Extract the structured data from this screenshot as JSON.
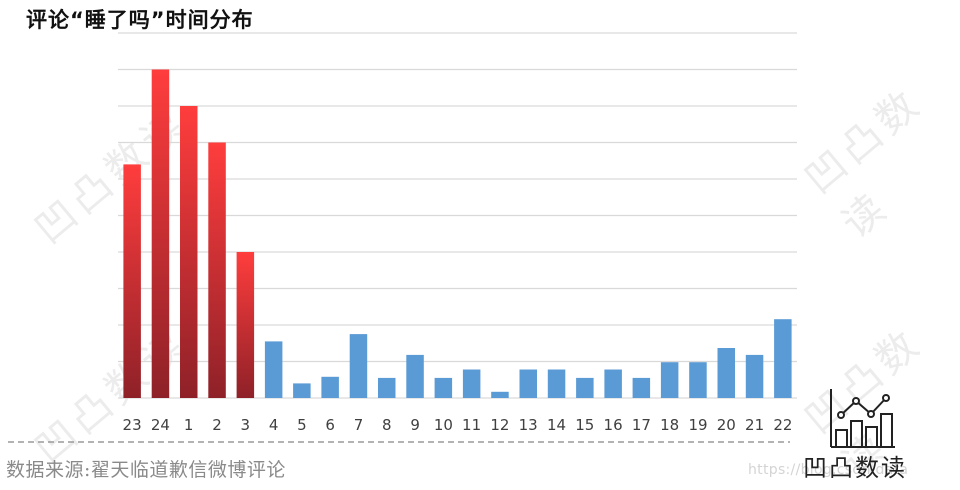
{
  "header": {
    "title": "评论“睡了吗”时间分布"
  },
  "footer": {
    "caption": "数据来源:翟天临道歉信微博评论",
    "logo_text": "凹凸数读",
    "url_watermark": "https://blog.csdn          data"
  },
  "watermarks": {
    "text": "凹凸数读"
  },
  "colors": {
    "red_top": "#ff3d3d",
    "red_bottom": "#8e2128",
    "blue": "#5b9bd5",
    "grid": "#d9d9d9",
    "axis_label": "#404040",
    "caption": "#8a8a8a"
  },
  "chart_data": {
    "type": "bar",
    "title": "评论“睡了吗”时间分布",
    "xlabel": "",
    "ylabel": "",
    "categories": [
      "23",
      "24",
      "1",
      "2",
      "3",
      "4",
      "5",
      "6",
      "7",
      "8",
      "9",
      "10",
      "11",
      "12",
      "13",
      "14",
      "15",
      "16",
      "17",
      "18",
      "19",
      "20",
      "21",
      "22"
    ],
    "values": [
      6.4,
      9.0,
      8.0,
      7.0,
      4.0,
      1.55,
      0.4,
      0.58,
      1.75,
      0.55,
      1.18,
      0.55,
      0.78,
      0.17,
      0.78,
      0.78,
      0.55,
      0.78,
      0.55,
      0.98,
      0.98,
      1.37,
      1.18,
      2.16
    ],
    "highlight": [
      "red",
      "red",
      "red",
      "red",
      "red",
      "blue",
      "blue",
      "blue",
      "blue",
      "blue",
      "blue",
      "blue",
      "blue",
      "blue",
      "blue",
      "blue",
      "blue",
      "blue",
      "blue",
      "blue",
      "blue",
      "blue",
      "blue",
      "blue"
    ],
    "ylim": [
      0,
      10
    ],
    "y_tick_labels_visible": false,
    "grid": true,
    "gridline_count": 10,
    "legend": "none",
    "note": "Values in gridline units; y-axis has no numeric tick labels"
  }
}
